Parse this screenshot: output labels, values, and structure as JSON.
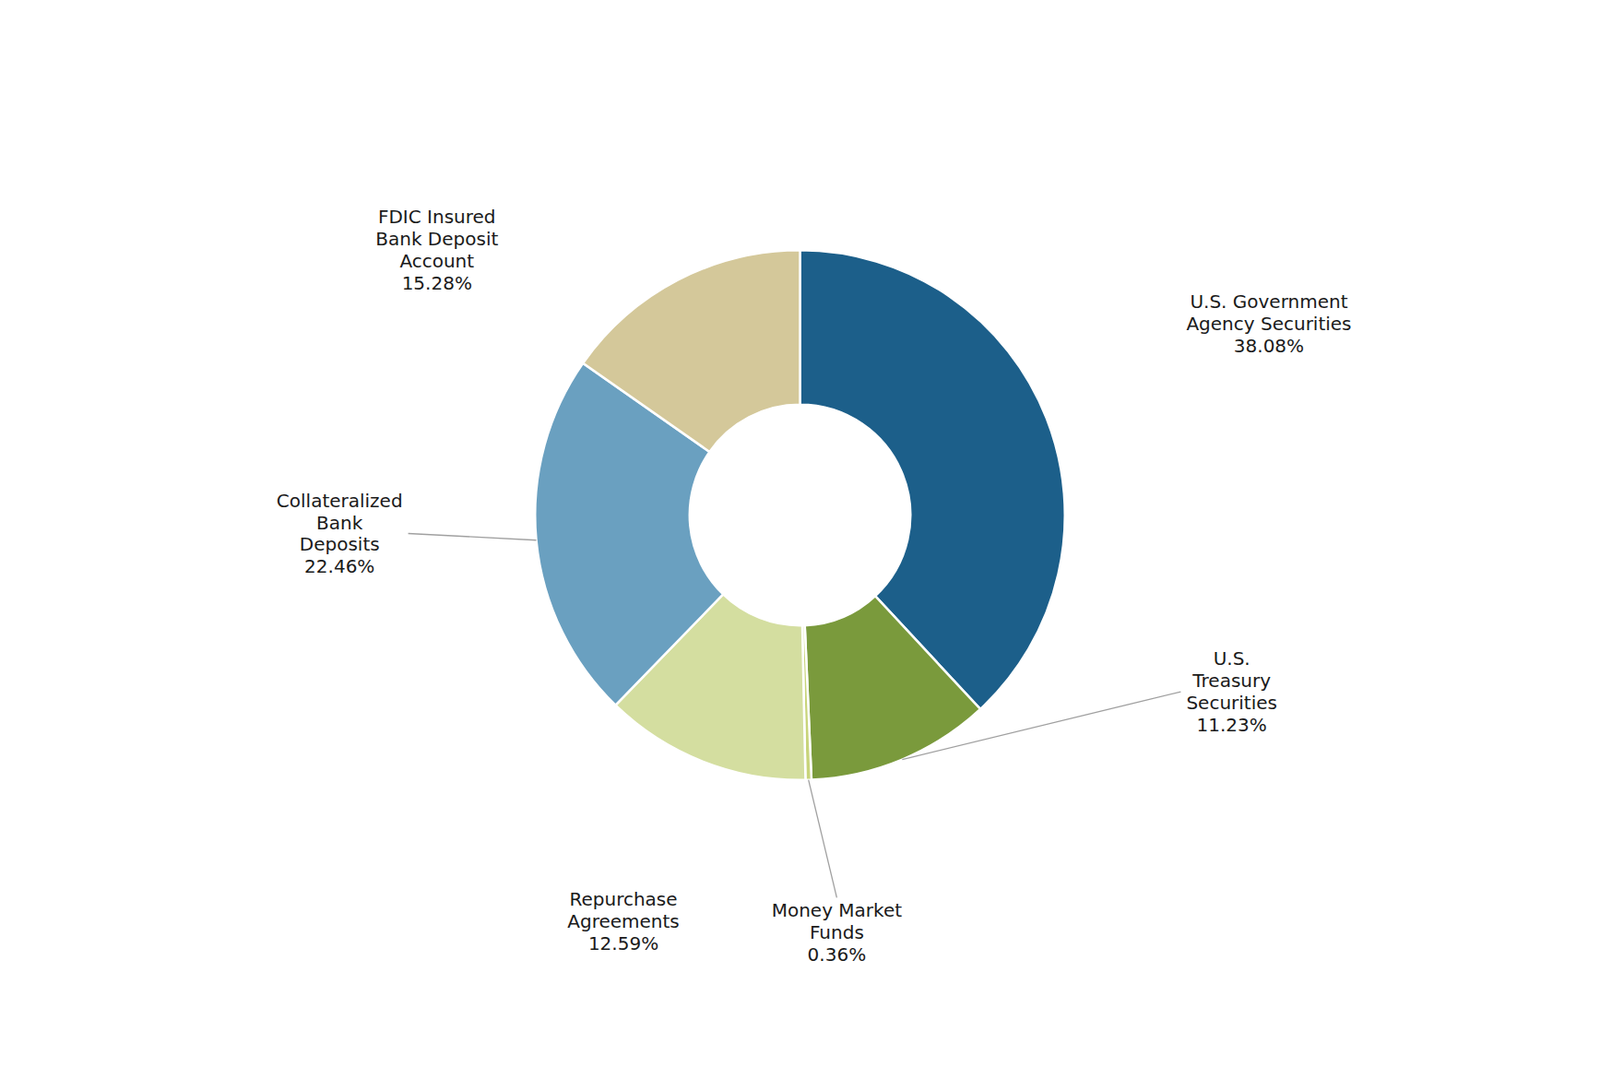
{
  "chart_data": {
    "type": "pie",
    "categories": [
      "U.S. Government\nAgency Securities\n38.08%",
      "U.S.\nTreasury\nSecurities\n11.23%",
      "Money Market\nFunds\n0.36%",
      "Repurchase\nAgreements\n12.59%",
      "Collateralized\nBank\nDeposits\n22.46%",
      "FDIC Insured\nBank Deposit\nAccount\n15.28%"
    ],
    "values": [
      38.08,
      11.23,
      0.36,
      12.59,
      22.46,
      15.28
    ],
    "colors": [
      "#1c5f8a",
      "#7a9a3c",
      "#c8d47a",
      "#d4dea0",
      "#6aa0c0",
      "#d4c89a"
    ]
  }
}
